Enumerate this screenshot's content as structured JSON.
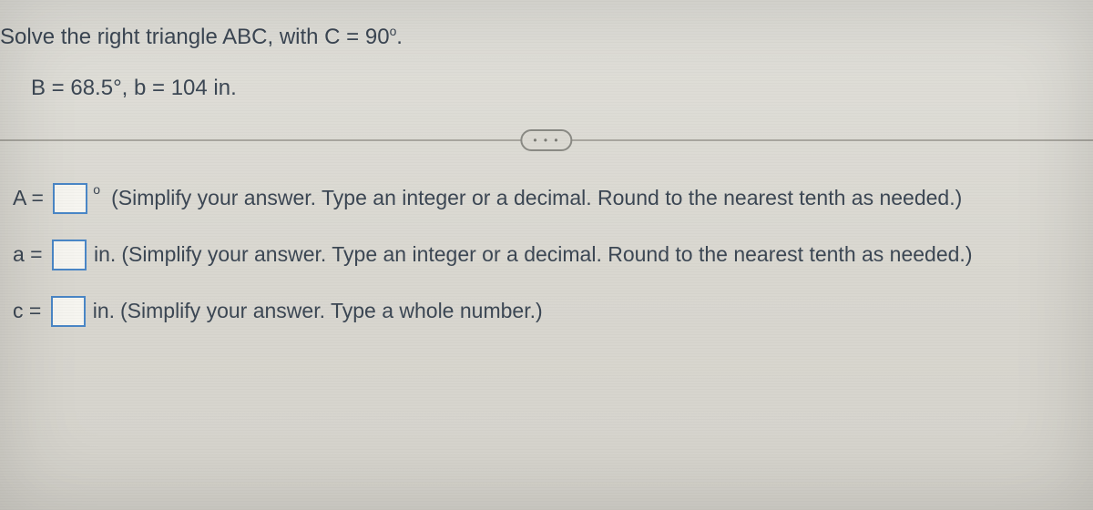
{
  "question": {
    "line1_prefix": "Solve the right triangle ABC, with C = 90",
    "line1_suffix": ".",
    "line2": "B = 68.5°, b = 104 in."
  },
  "pill_label": "• • •",
  "answers": {
    "A": {
      "label": "A = ",
      "unit_symbol": "°",
      "hint": "(Simplify your answer. Type an integer or a decimal. Round to the nearest tenth as needed.)"
    },
    "a": {
      "label": "a = ",
      "unit": "in.",
      "hint": "(Simplify your answer. Type an integer or a decimal. Round to the nearest tenth as needed.)"
    },
    "c": {
      "label": "c = ",
      "unit": "in.",
      "hint": "(Simplify your answer. Type a whole number.)"
    }
  },
  "style": {
    "input_border": "#4a87c7",
    "text_color": "#3c4754",
    "bg_color": "#dcdad4"
  }
}
